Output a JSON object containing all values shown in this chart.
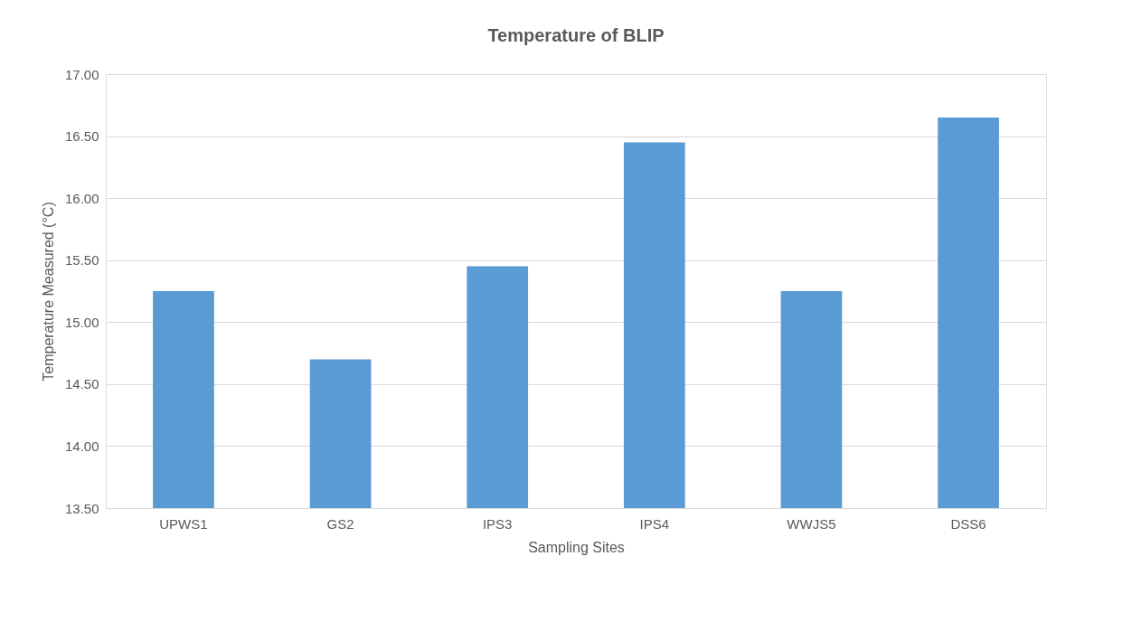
{
  "chart_data": {
    "type": "bar",
    "title": "Temperature of BLIP",
    "xlabel": "Sampling Sites",
    "ylabel": "Temperature Measured  (°C)",
    "categories": [
      "UPWS1",
      "GS2",
      "IPS3",
      "IPS4",
      "WWJS5",
      "DSS6"
    ],
    "series": [
      {
        "color": "#5b9bd5",
        "values": [
          15.25,
          14.7,
          15.45,
          16.45,
          15.25,
          16.65
        ]
      }
    ],
    "ylim": [
      13.5,
      17.0
    ],
    "yticks": [
      {
        "value": 13.5,
        "label": "13.50"
      },
      {
        "value": 14.0,
        "label": "14.00"
      },
      {
        "value": 14.5,
        "label": "14.50"
      },
      {
        "value": 15.0,
        "label": "15.00"
      },
      {
        "value": 15.5,
        "label": "15.50"
      },
      {
        "value": 16.0,
        "label": "16.00"
      },
      {
        "value": 16.5,
        "label": "16.50"
      },
      {
        "value": 17.0,
        "label": "17.00"
      }
    ],
    "grid": "y"
  }
}
